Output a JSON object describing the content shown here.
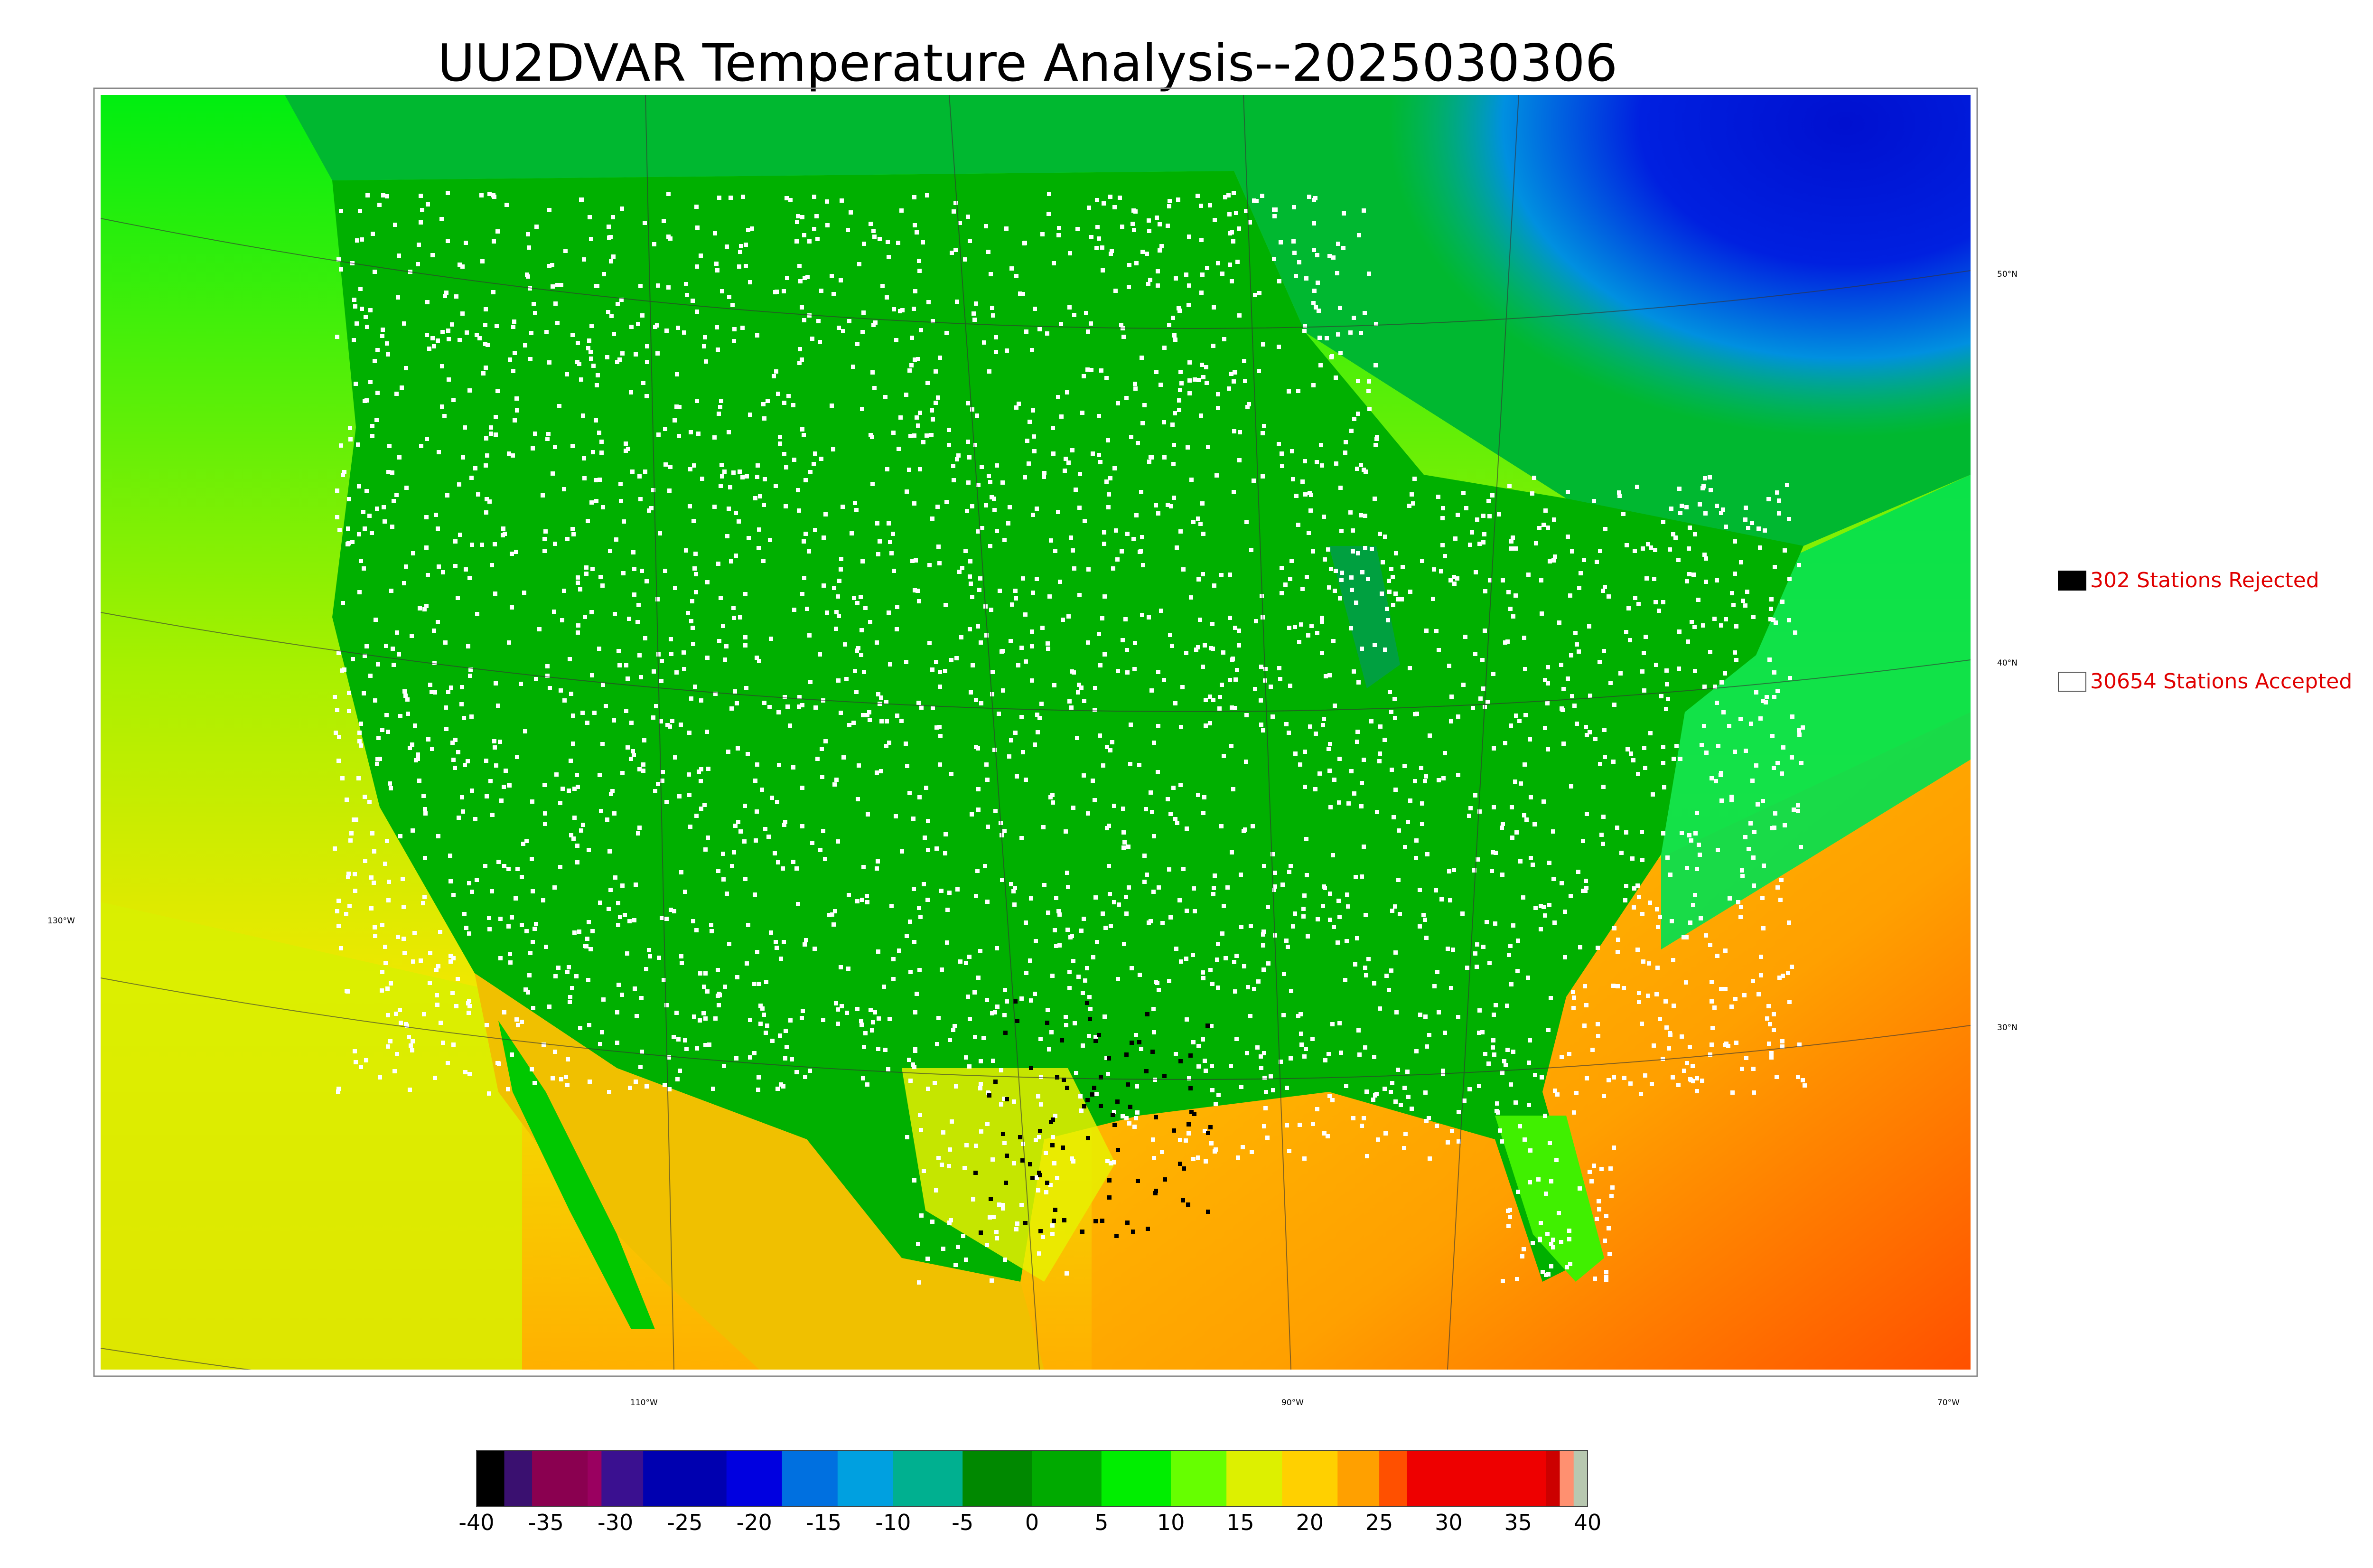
{
  "title": "UU2DVAR Temperature Analysis--2025030306",
  "legend": {
    "rejected": {
      "label": "302 Stations Rejected",
      "color": "#000000"
    },
    "accepted": {
      "label": "30654 Stations Accepted",
      "color": "#ffffff"
    }
  },
  "graticule": {
    "lat_labels": [
      "50°N",
      "40°N",
      "30°N"
    ],
    "lon_labels": [
      "130°W",
      "110°W",
      "90°W",
      "70°W"
    ]
  },
  "colorbar": {
    "ticks": [
      "-40",
      "-35",
      "-30",
      "-25",
      "-20",
      "-15",
      "-10",
      "-5",
      "0",
      "5",
      "10",
      "15",
      "20",
      "25",
      "30",
      "35",
      "40"
    ],
    "range": [
      -40,
      40
    ],
    "stops": [
      {
        "v": -40,
        "c": "#000000"
      },
      {
        "v": -38,
        "c": "#3a1070"
      },
      {
        "v": -36,
        "c": "#8a0050"
      },
      {
        "v": -32,
        "c": "#9a0060"
      },
      {
        "v": -31,
        "c": "#3a1090"
      },
      {
        "v": -28,
        "c": "#0000b0"
      },
      {
        "v": -22,
        "c": "#0000e0"
      },
      {
        "v": -18,
        "c": "#0070e0"
      },
      {
        "v": -14,
        "c": "#00a0e0"
      },
      {
        "v": -10,
        "c": "#00b090"
      },
      {
        "v": -5,
        "c": "#008800"
      },
      {
        "v": 0,
        "c": "#00aa00"
      },
      {
        "v": 5,
        "c": "#00ee00"
      },
      {
        "v": 10,
        "c": "#66ff00"
      },
      {
        "v": 14,
        "c": "#ddf000"
      },
      {
        "v": 18,
        "c": "#ffd000"
      },
      {
        "v": 22,
        "c": "#ffa000"
      },
      {
        "v": 25,
        "c": "#ff5000"
      },
      {
        "v": 27,
        "c": "#ee0000"
      },
      {
        "v": 36,
        "c": "#ee0000"
      },
      {
        "v": 37,
        "c": "#cc0000"
      },
      {
        "v": 38,
        "c": "#ff9070"
      },
      {
        "v": 39,
        "c": "#b8c8b0"
      },
      {
        "v": 40,
        "c": "#d8d8c8"
      }
    ]
  }
}
